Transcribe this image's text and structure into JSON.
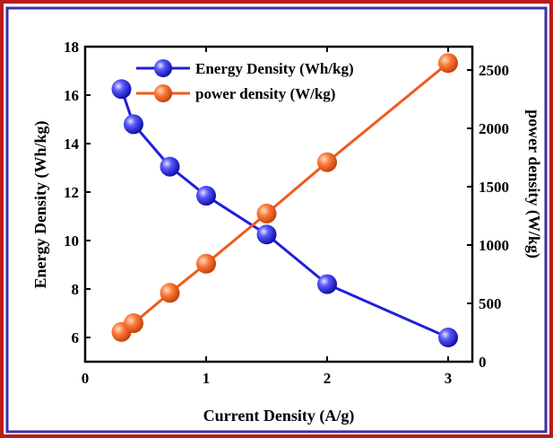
{
  "chart_data": {
    "type": "line",
    "xlabel": "Current Density (A/g)",
    "ylabel_left": "Energy Density (Wh/kg)",
    "ylabel_right": "power density (W/kg)",
    "xlim": [
      0,
      3.2
    ],
    "ylim_left": [
      5,
      18
    ],
    "ylim_right": [
      0,
      2700
    ],
    "x_ticks": [
      0,
      1,
      2,
      3
    ],
    "y_left_ticks": [
      6,
      8,
      10,
      12,
      14,
      16,
      18
    ],
    "y_right_ticks": [
      0,
      500,
      1000,
      1500,
      2000,
      2500
    ],
    "legend_position": "top-left",
    "series": [
      {
        "name": "Energy Density (Wh/kg)",
        "axis": "left",
        "color": "#1f1fdc",
        "x": [
          0.3,
          0.4,
          0.7,
          1.0,
          1.5,
          2.0,
          3.0
        ],
        "values": [
          16.25,
          14.8,
          13.05,
          11.85,
          10.25,
          8.2,
          6.0
        ]
      },
      {
        "name": "power density (W/kg)",
        "axis": "right",
        "color": "#f05a1e",
        "x": [
          0.3,
          0.4,
          0.7,
          1.0,
          1.5,
          2.0,
          3.0
        ],
        "values": [
          255,
          330,
          590,
          840,
          1270,
          1710,
          2560
        ]
      }
    ]
  },
  "colors": {
    "outer_border": "#b71c1c",
    "inner_border": "#3a2fa8",
    "energy_series": "#1f1fdc",
    "power_series": "#f05a1e"
  }
}
